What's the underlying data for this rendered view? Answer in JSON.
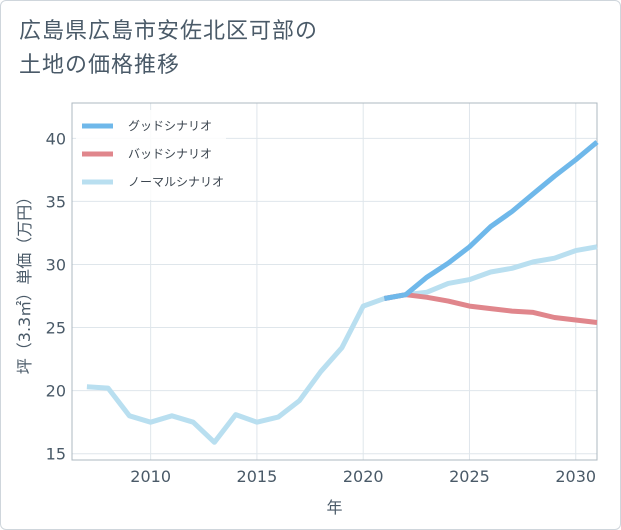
{
  "title_line1": "広島県広島市安佐北区可部の",
  "title_line2": "土地の価格推移",
  "chart_data": {
    "type": "line",
    "xlabel": "年",
    "ylabel": "坪（3.3㎡）単価（万円）",
    "xlim": [
      2006.3,
      2031
    ],
    "ylim": [
      14.5,
      42.8
    ],
    "xticks": [
      2010,
      2015,
      2020,
      2025,
      2030
    ],
    "yticks": [
      15,
      20,
      25,
      30,
      35,
      40
    ],
    "grid": true,
    "legend_position": "top-left",
    "series": [
      {
        "name": "グッドシナリオ",
        "color": "#6fb8ea",
        "x": [
          2021,
          2022,
          2023,
          2024,
          2025,
          2026,
          2027,
          2028,
          2029,
          2030,
          2031
        ],
        "y": [
          27.3,
          27.6,
          29.0,
          30.1,
          31.4,
          33.0,
          34.2,
          35.6,
          37.0,
          38.3,
          39.7
        ]
      },
      {
        "name": "バッドシナリオ",
        "color": "#e0868c",
        "x": [
          2021,
          2022,
          2023,
          2024,
          2025,
          2026,
          2027,
          2028,
          2029,
          2030,
          2031
        ],
        "y": [
          27.3,
          27.6,
          27.4,
          27.1,
          26.7,
          26.5,
          26.3,
          26.2,
          25.8,
          25.6,
          25.4
        ]
      },
      {
        "name": "ノーマルシナリオ",
        "color": "#b9dff0",
        "x": [
          2007,
          2008,
          2009,
          2010,
          2011,
          2012,
          2013,
          2014,
          2015,
          2016,
          2017,
          2018,
          2019,
          2020,
          2021,
          2022,
          2023,
          2024,
          2025,
          2026,
          2027,
          2028,
          2029,
          2030,
          2031
        ],
        "y": [
          20.3,
          20.2,
          18.0,
          17.5,
          18.0,
          17.5,
          15.9,
          18.1,
          17.5,
          17.9,
          19.2,
          21.5,
          23.4,
          26.7,
          27.3,
          27.6,
          27.8,
          28.5,
          28.8,
          29.4,
          29.7,
          30.2,
          30.5,
          31.1,
          31.4
        ]
      }
    ]
  }
}
